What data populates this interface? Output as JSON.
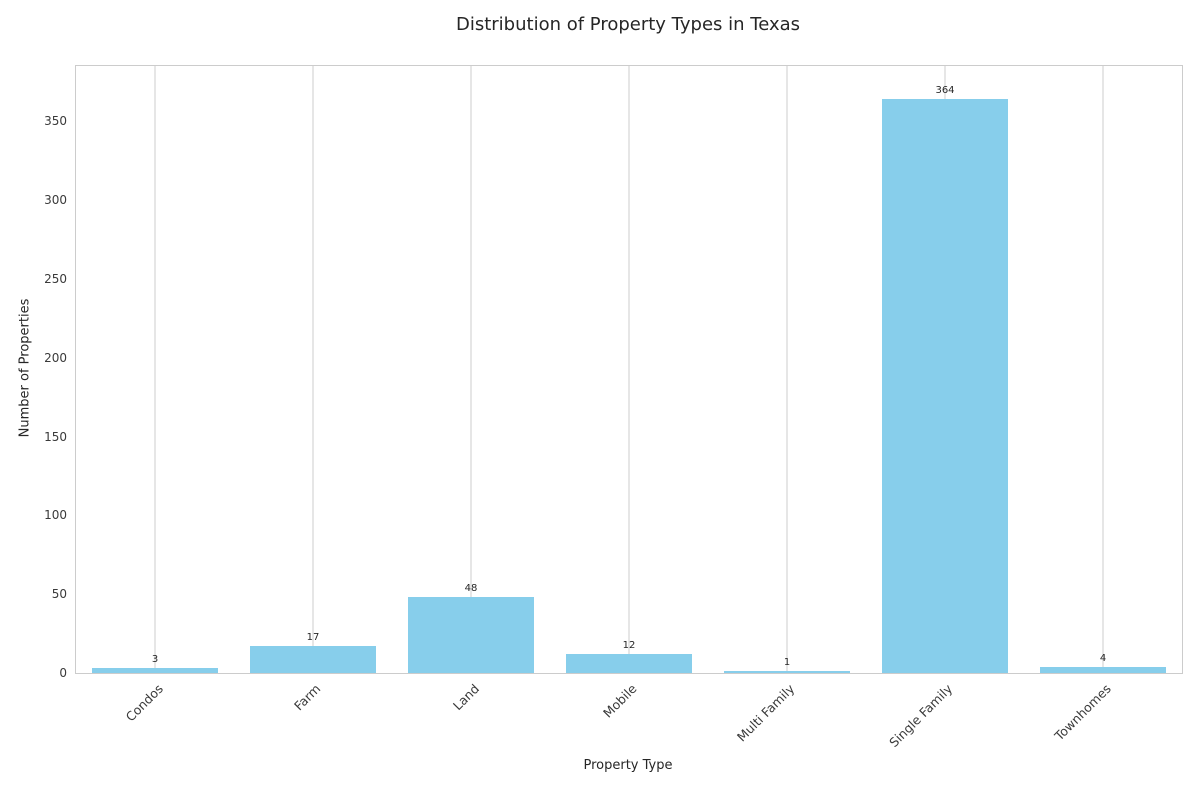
{
  "chart_data": {
    "type": "bar",
    "title": "Distribution of Property Types in Texas",
    "xlabel": "Property Type",
    "ylabel": "Number of Properties",
    "categories": [
      "Condos",
      "Farm",
      "Land",
      "Mobile",
      "Multi Family",
      "Single Family",
      "Townhomes"
    ],
    "values": [
      3,
      17,
      48,
      12,
      1,
      364,
      4
    ],
    "bar_value_labels": [
      "3",
      "17",
      "48",
      "12",
      "1",
      "364",
      "4"
    ],
    "ylim": [
      0,
      385
    ],
    "yticks": [
      0,
      50,
      100,
      150,
      200,
      250,
      300,
      350
    ],
    "bar_color": "#87CEEB",
    "grid": "vertical",
    "grid_color": "#cccccc",
    "plot_border_color": "#cccccc",
    "background": "#ffffff",
    "legend": "none",
    "x_tick_rotation_deg": 45
  }
}
